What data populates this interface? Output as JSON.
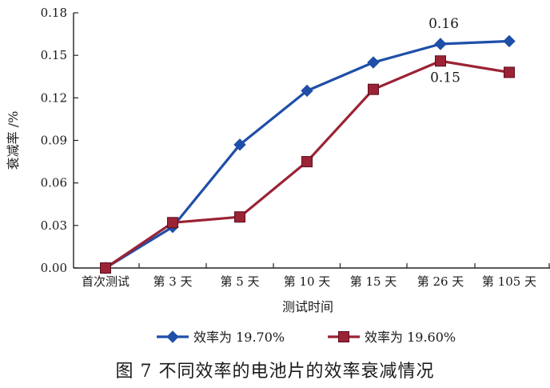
{
  "chart_data": {
    "type": "line",
    "categories": [
      "首次测试",
      "第 3 天",
      "第 5 天",
      "第 10 天",
      "第 15 天",
      "第 26 天",
      "第 105 天"
    ],
    "series": [
      {
        "name": "效率为 19.70%",
        "color": "#1f4fa8",
        "marker": "diamond",
        "values": [
          0.0,
          0.029,
          0.087,
          0.125,
          0.145,
          0.158,
          0.16
        ]
      },
      {
        "name": "效率为 19.60%",
        "color": "#9b2335",
        "marker": "square",
        "values": [
          0.0,
          0.032,
          0.036,
          0.075,
          0.126,
          0.146,
          0.138
        ]
      }
    ],
    "ylabel": "衰减率 /%",
    "xlabel": "测试时间",
    "ylim": [
      0,
      0.18
    ],
    "yticks": [
      "0.00",
      "0.03",
      "0.06",
      "0.09",
      "0.12",
      "0.15",
      "0.18"
    ],
    "annotations": [
      {
        "text": "0.16",
        "series": 0,
        "index": 5
      },
      {
        "text": "0.15",
        "series": 1,
        "index": 5
      }
    ],
    "legend_position": "bottom",
    "grid": false
  },
  "caption": "图 7  不同效率的电池片的效率衰减情况"
}
